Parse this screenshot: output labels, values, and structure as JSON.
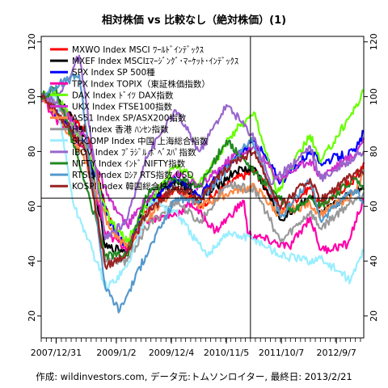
{
  "chart_data": {
    "type": "line",
    "title": "相対株価 vs 比較なし（絶対株価）(1)",
    "caption": "作成: wildinvestors.com, データ元:トムソンロイター, 最終日: 2013/2/21",
    "xlabel": "",
    "ylabel": "",
    "x_ticks": [
      "2007/12/31",
      "2009/1/2",
      "2009/12/4",
      "2010/11/5",
      "2011/10/7",
      "2012/9/7"
    ],
    "x_tick_dates": [
      "2007-12-31",
      "2009-01-02",
      "2009-12-04",
      "2010-11-05",
      "2011-10-07",
      "2012-09-07"
    ],
    "x_range": [
      "2007-10-01",
      "2013-02-21"
    ],
    "ylim": [
      12,
      122
    ],
    "y_ticks": [
      20,
      40,
      60,
      80,
      100,
      120
    ],
    "reference_lines": {
      "horizontal": 63,
      "vertical": "2011-04-01"
    },
    "grid": false,
    "legend_position": "top-left",
    "series": [
      {
        "name": "MXWO Index MSCI ﾜｰﾙﾄﾞｲﾝﾃﾞｯｸｽ",
        "color": "#ff0000",
        "width": 2.2,
        "values": [
          [
            "2007-10-01",
            100
          ],
          [
            "2007-12-31",
            97
          ],
          [
            "2008-06-30",
            88
          ],
          [
            "2008-11-20",
            55
          ],
          [
            "2009-03-09",
            44
          ],
          [
            "2009-06-30",
            58
          ],
          [
            "2009-12-31",
            67
          ],
          [
            "2010-05-25",
            60
          ],
          [
            "2010-12-31",
            70
          ],
          [
            "2011-04-29",
            73
          ],
          [
            "2011-10-03",
            58
          ],
          [
            "2012-03-30",
            67
          ],
          [
            "2012-06-01",
            60
          ],
          [
            "2012-12-31",
            70
          ],
          [
            "2013-02-21",
            76
          ]
        ]
      },
      {
        "name": "MXEF Index MSCIｴﾏｰｼﾞﾝｸﾞ･ﾏｰｹｯﾄ･ｲﾝﾃﾞｯｸｽ",
        "color": "#000000",
        "width": 2.2,
        "values": [
          [
            "2007-10-01",
            100
          ],
          [
            "2007-12-31",
            100
          ],
          [
            "2008-06-30",
            85
          ],
          [
            "2008-10-27",
            45
          ],
          [
            "2009-03-09",
            44
          ],
          [
            "2009-06-30",
            60
          ],
          [
            "2009-12-31",
            70
          ],
          [
            "2010-05-25",
            62
          ],
          [
            "2010-12-31",
            73
          ],
          [
            "2011-04-29",
            74
          ],
          [
            "2011-10-03",
            55
          ],
          [
            "2012-03-30",
            64
          ],
          [
            "2012-06-01",
            57
          ],
          [
            "2012-12-31",
            66
          ],
          [
            "2013-02-21",
            67
          ]
        ]
      },
      {
        "name": "SPX Index SP 500種",
        "color": "#0000ff",
        "width": 2.2,
        "values": [
          [
            "2007-10-01",
            100
          ],
          [
            "2007-12-31",
            94
          ],
          [
            "2008-06-30",
            82
          ],
          [
            "2008-11-20",
            55
          ],
          [
            "2009-03-09",
            44
          ],
          [
            "2009-06-30",
            60
          ],
          [
            "2009-12-31",
            70
          ],
          [
            "2010-05-25",
            64
          ],
          [
            "2010-12-31",
            78
          ],
          [
            "2011-04-29",
            84
          ],
          [
            "2011-10-03",
            69
          ],
          [
            "2012-03-30",
            80
          ],
          [
            "2012-06-01",
            76
          ],
          [
            "2012-12-31",
            80
          ],
          [
            "2013-02-21",
            87
          ]
        ]
      },
      {
        "name": "TPX Index TOPIX（東証株価指数）",
        "color": "#ff00aa",
        "width": 2.2,
        "values": [
          [
            "2007-10-01",
            100
          ],
          [
            "2007-12-31",
            92
          ],
          [
            "2008-06-30",
            80
          ],
          [
            "2008-10-27",
            50
          ],
          [
            "2009-03-09",
            45
          ],
          [
            "2009-06-30",
            55
          ],
          [
            "2009-12-31",
            57
          ],
          [
            "2010-04-05",
            61
          ],
          [
            "2010-08-31",
            51
          ],
          [
            "2011-02-21",
            62
          ],
          [
            "2011-03-15",
            50
          ],
          [
            "2011-11-25",
            45
          ],
          [
            "2012-03-30",
            56
          ],
          [
            "2012-06-04",
            44
          ],
          [
            "2012-11-14",
            46
          ],
          [
            "2013-02-21",
            63
          ]
        ]
      },
      {
        "name": "DAX Index ﾄﾞｲﾂ DAX指数",
        "color": "#66ff00",
        "width": 2.2,
        "values": [
          [
            "2007-10-01",
            100
          ],
          [
            "2007-12-31",
            101
          ],
          [
            "2008-06-30",
            82
          ],
          [
            "2008-11-20",
            55
          ],
          [
            "2009-03-09",
            47
          ],
          [
            "2009-06-30",
            60
          ],
          [
            "2009-12-31",
            75
          ],
          [
            "2010-05-25",
            68
          ],
          [
            "2010-12-31",
            88
          ],
          [
            "2011-04-29",
            94
          ],
          [
            "2011-09-12",
            65
          ],
          [
            "2012-03-30",
            86
          ],
          [
            "2012-06-01",
            76
          ],
          [
            "2012-12-31",
            96
          ],
          [
            "2013-02-21",
            102
          ]
        ]
      },
      {
        "name": "UKX Index FTSE100指数",
        "color": "#cc33cc",
        "width": 2.2,
        "values": [
          [
            "2007-10-01",
            100
          ],
          [
            "2007-12-31",
            98
          ],
          [
            "2008-06-30",
            85
          ],
          [
            "2008-11-20",
            62
          ],
          [
            "2009-03-09",
            53
          ],
          [
            "2009-06-30",
            62
          ],
          [
            "2009-12-31",
            72
          ],
          [
            "2010-05-25",
            67
          ],
          [
            "2010-12-31",
            79
          ],
          [
            "2011-04-29",
            81
          ],
          [
            "2011-09-22",
            70
          ],
          [
            "2012-03-30",
            77
          ],
          [
            "2012-06-01",
            71
          ],
          [
            "2012-12-31",
            79
          ],
          [
            "2013-02-21",
            85
          ]
        ]
      },
      {
        "name": "AS51 Index SP/ASX200指数",
        "color": "#ff8844",
        "width": 2.2,
        "values": [
          [
            "2007-10-01",
            100
          ],
          [
            "2007-12-31",
            94
          ],
          [
            "2008-06-30",
            76
          ],
          [
            "2008-11-20",
            52
          ],
          [
            "2009-03-09",
            45
          ],
          [
            "2009-06-30",
            55
          ],
          [
            "2009-12-31",
            67
          ],
          [
            "2010-05-25",
            60
          ],
          [
            "2010-12-31",
            66
          ],
          [
            "2011-04-29",
            67
          ],
          [
            "2011-09-22",
            57
          ],
          [
            "2012-03-30",
            61
          ],
          [
            "2012-06-01",
            57
          ],
          [
            "2012-12-31",
            65
          ],
          [
            "2013-02-21",
            72
          ]
        ]
      },
      {
        "name": "HSI Index 香港 ﾊﾝｾﾝ指数",
        "color": "#999999",
        "width": 2.2,
        "values": [
          [
            "2007-10-01",
            100
          ],
          [
            "2007-12-31",
            98
          ],
          [
            "2008-06-30",
            82
          ],
          [
            "2008-10-27",
            40
          ],
          [
            "2009-03-09",
            40
          ],
          [
            "2009-06-30",
            52
          ],
          [
            "2009-12-31",
            62
          ],
          [
            "2010-05-25",
            54
          ],
          [
            "2010-11-05",
            68
          ],
          [
            "2011-04-29",
            66
          ],
          [
            "2011-10-03",
            47
          ],
          [
            "2012-03-30",
            58
          ],
          [
            "2012-06-01",
            52
          ],
          [
            "2012-12-31",
            63
          ],
          [
            "2013-02-21",
            65
          ]
        ]
      },
      {
        "name": "SHCOMP Index 中国 上海総合指数",
        "color": "#99eeff",
        "width": 2.2,
        "values": [
          [
            "2007-10-01",
            100
          ],
          [
            "2007-12-31",
            100
          ],
          [
            "2008-04-18",
            60
          ],
          [
            "2008-06-30",
            50
          ],
          [
            "2008-11-04",
            30
          ],
          [
            "2009-03-09",
            38
          ],
          [
            "2009-08-04",
            62
          ],
          [
            "2009-12-31",
            58
          ],
          [
            "2010-07-05",
            42
          ],
          [
            "2010-11-05",
            50
          ],
          [
            "2011-04-29",
            48
          ],
          [
            "2011-10-03",
            42
          ],
          [
            "2012-03-30",
            40
          ],
          [
            "2012-06-01",
            41
          ],
          [
            "2012-12-03",
            33
          ],
          [
            "2013-02-21",
            44
          ]
        ]
      },
      {
        "name": "IBOV Index ﾌﾞﾗｼﾞﾙ ﾎﾞﾍﾞｽﾊﾟ指数",
        "color": "#9966cc",
        "width": 2.2,
        "values": [
          [
            "2007-10-01",
            100
          ],
          [
            "2007-12-31",
            98
          ],
          [
            "2008-05-20",
            115
          ],
          [
            "2008-10-27",
            48
          ],
          [
            "2009-03-09",
            55
          ],
          [
            "2009-06-30",
            78
          ],
          [
            "2009-12-31",
            95
          ],
          [
            "2010-05-25",
            80
          ],
          [
            "2010-11-05",
            97
          ],
          [
            "2011-04-29",
            85
          ],
          [
            "2011-08-08",
            68
          ],
          [
            "2012-03-30",
            82
          ],
          [
            "2012-06-01",
            70
          ],
          [
            "2012-12-31",
            78
          ],
          [
            "2013-02-21",
            80
          ]
        ]
      },
      {
        "name": "NIFTY Index ｲﾝﾄﾞ NIFTY指数",
        "color": "#228822",
        "width": 2.2,
        "values": [
          [
            "2007-10-01",
            100
          ],
          [
            "2007-12-31",
            103
          ],
          [
            "2008-06-30",
            68
          ],
          [
            "2008-10-27",
            42
          ],
          [
            "2009-03-09",
            42
          ],
          [
            "2009-06-30",
            64
          ],
          [
            "2009-12-31",
            70
          ],
          [
            "2010-05-25",
            67
          ],
          [
            "2010-11-05",
            84
          ],
          [
            "2011-04-29",
            72
          ],
          [
            "2011-12-20",
            58
          ],
          [
            "2012-03-30",
            64
          ],
          [
            "2012-06-01",
            60
          ],
          [
            "2012-12-31",
            70
          ],
          [
            "2013-02-21",
            66
          ]
        ]
      },
      {
        "name": "RTSI$ Index ﾛｼｱ RTS指数 USD",
        "color": "#5599cc",
        "width": 2.2,
        "values": [
          [
            "2007-10-01",
            100
          ],
          [
            "2007-12-31",
            104
          ],
          [
            "2008-05-20",
            108
          ],
          [
            "2008-10-27",
            30
          ],
          [
            "2009-01-23",
            22
          ],
          [
            "2009-06-30",
            42
          ],
          [
            "2009-12-31",
            63
          ],
          [
            "2010-05-25",
            62
          ],
          [
            "2010-12-31",
            77
          ],
          [
            "2011-04-08",
            85
          ],
          [
            "2011-10-03",
            56
          ],
          [
            "2012-03-30",
            70
          ],
          [
            "2012-06-01",
            55
          ],
          [
            "2012-12-31",
            66
          ],
          [
            "2013-02-21",
            62
          ]
        ]
      },
      {
        "name": "KOSPI Index 韓国総合株価指数",
        "color": "#992222",
        "width": 2.2,
        "values": [
          [
            "2007-10-01",
            100
          ],
          [
            "2007-12-31",
            95
          ],
          [
            "2008-06-30",
            80
          ],
          [
            "2008-10-27",
            38
          ],
          [
            "2009-03-09",
            43
          ],
          [
            "2009-06-30",
            57
          ],
          [
            "2009-12-31",
            67
          ],
          [
            "2010-05-25",
            63
          ],
          [
            "2010-12-31",
            77
          ],
          [
            "2011-04-29",
            80
          ],
          [
            "2011-09-26",
            60
          ],
          [
            "2012-03-30",
            70
          ],
          [
            "2012-06-01",
            62
          ],
          [
            "2012-12-31",
            72
          ],
          [
            "2013-02-21",
            72
          ]
        ]
      }
    ]
  }
}
